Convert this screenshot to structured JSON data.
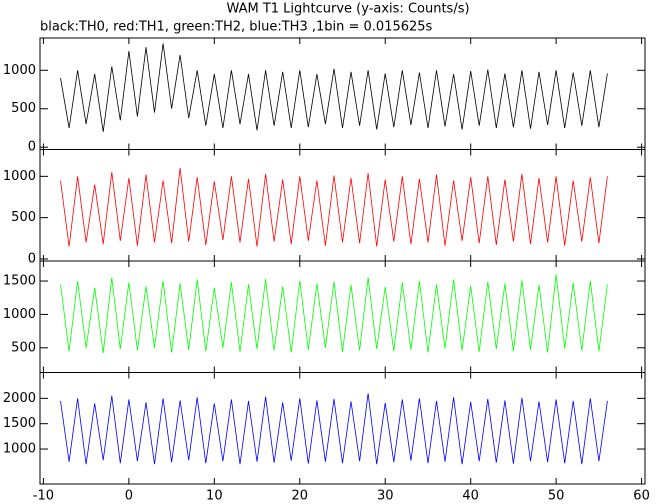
{
  "chart_data": [
    {
      "type": "line",
      "title": "WAM T1 Lightcurve (y-axis: Counts/s)",
      "subtitle": "black:TH0, red:TH1, green:TH2, blue:TH3 ,1bin = 0.015625s",
      "x": [
        -8,
        -7,
        -6,
        -5,
        -4,
        -3,
        -2,
        -1,
        0,
        1,
        2,
        3,
        4,
        5,
        6,
        7,
        8,
        9,
        10,
        11,
        12,
        13,
        14,
        15,
        16,
        17,
        18,
        19,
        20,
        21,
        22,
        23,
        24,
        25,
        26,
        27,
        28,
        29,
        30,
        31,
        32,
        33,
        34,
        35,
        36,
        37,
        38,
        39,
        40,
        41,
        42,
        43,
        44,
        45,
        46,
        47,
        48,
        49,
        50,
        51,
        52,
        53,
        54,
        55,
        56
      ],
      "series": [
        {
          "color": "#000000",
          "values": [
            900,
            250,
            1000,
            300,
            950,
            200,
            1050,
            350,
            1250,
            400,
            1300,
            450,
            1350,
            500,
            1200,
            380,
            1000,
            280,
            950,
            250,
            1000,
            300,
            950,
            220,
            1000,
            280,
            980,
            250,
            1000,
            260,
            950,
            300,
            1020,
            250,
            980,
            280,
            1000,
            230,
            960,
            260,
            1000,
            290,
            970,
            250,
            1000,
            270,
            950,
            230,
            990,
            280,
            1010,
            250,
            960,
            260,
            1000,
            240,
            980,
            290,
            1000,
            250,
            970,
            280,
            1000,
            260,
            960
          ]
        }
      ],
      "xlim": [
        -10.4,
        60.4
      ],
      "ylim": [
        -30,
        1420
      ],
      "yticks": [
        0,
        500,
        1000
      ]
    },
    {
      "type": "line",
      "x": [
        -8,
        -7,
        -6,
        -5,
        -4,
        -3,
        -2,
        -1,
        0,
        1,
        2,
        3,
        4,
        5,
        6,
        7,
        8,
        9,
        10,
        11,
        12,
        13,
        14,
        15,
        16,
        17,
        18,
        19,
        20,
        21,
        22,
        23,
        24,
        25,
        26,
        27,
        28,
        29,
        30,
        31,
        32,
        33,
        34,
        35,
        36,
        37,
        38,
        39,
        40,
        41,
        42,
        43,
        44,
        45,
        46,
        47,
        48,
        49,
        50,
        51,
        52,
        53,
        54,
        55,
        56
      ],
      "series": [
        {
          "color": "#ff0000",
          "values": [
            950,
            150,
            1000,
            200,
            900,
            180,
            1050,
            220,
            980,
            160,
            1020,
            200,
            950,
            190,
            1100,
            210,
            990,
            170,
            940,
            230,
            1000,
            200,
            970,
            150,
            1030,
            210,
            960,
            180,
            1000,
            220,
            950,
            160,
            1010,
            200,
            980,
            190,
            1040,
            150,
            960,
            210,
            1000,
            180,
            970,
            200,
            1020,
            160,
            950,
            220,
            990,
            190,
            1000,
            170,
            960,
            210,
            1030,
            180,
            980,
            200,
            1000,
            160,
            950,
            210,
            990,
            190,
            1000
          ]
        }
      ],
      "xlim": [
        -10.4,
        60.4
      ],
      "ylim": [
        -25,
        1325
      ],
      "yticks": [
        0,
        500,
        1000
      ]
    },
    {
      "type": "line",
      "x": [
        -8,
        -7,
        -6,
        -5,
        -4,
        -3,
        -2,
        -1,
        0,
        1,
        2,
        3,
        4,
        5,
        6,
        7,
        8,
        9,
        10,
        11,
        12,
        13,
        14,
        15,
        16,
        17,
        18,
        19,
        20,
        21,
        22,
        23,
        24,
        25,
        26,
        27,
        28,
        29,
        30,
        31,
        32,
        33,
        34,
        35,
        36,
        37,
        38,
        39,
        40,
        41,
        42,
        43,
        44,
        45,
        46,
        47,
        48,
        49,
        50,
        51,
        52,
        53,
        54,
        55,
        56
      ],
      "series": [
        {
          "color": "#00ff00",
          "values": [
            1450,
            450,
            1500,
            500,
            1400,
            420,
            1550,
            480,
            1480,
            460,
            1420,
            500,
            1500,
            430,
            1460,
            470,
            1520,
            450,
            1400,
            500,
            1480,
            440,
            1450,
            480,
            1530,
            460,
            1420,
            430,
            1500,
            470,
            1460,
            500,
            1490,
            440,
            1440,
            460,
            1550,
            480,
            1410,
            450,
            1480,
            470,
            1500,
            430,
            1450,
            490,
            1520,
            460,
            1430,
            440,
            1490,
            480,
            1460,
            450,
            1510,
            470,
            1440,
            430,
            1600,
            490,
            1470,
            460,
            1500,
            450,
            1450
          ]
        }
      ],
      "xlim": [
        -10.4,
        60.4
      ],
      "ylim": [
        130,
        1800
      ],
      "yticks": [
        500,
        1000,
        1500
      ]
    },
    {
      "type": "line",
      "x": [
        -8,
        -7,
        -6,
        -5,
        -4,
        -3,
        -2,
        -1,
        0,
        1,
        2,
        3,
        4,
        5,
        6,
        7,
        8,
        9,
        10,
        11,
        12,
        13,
        14,
        15,
        16,
        17,
        18,
        19,
        20,
        21,
        22,
        23,
        24,
        25,
        26,
        27,
        28,
        29,
        30,
        31,
        32,
        33,
        34,
        35,
        36,
        37,
        38,
        39,
        40,
        41,
        42,
        43,
        44,
        45,
        46,
        47,
        48,
        49,
        50,
        51,
        52,
        53,
        54,
        55,
        56
      ],
      "series": [
        {
          "color": "#0000ff",
          "values": [
            1950,
            750,
            2000,
            700,
            1900,
            780,
            2050,
            720,
            1980,
            760,
            1920,
            700,
            2000,
            740,
            1960,
            780,
            2020,
            720,
            1900,
            760,
            1980,
            700,
            1950,
            750,
            2030,
            730,
            1920,
            770,
            2000,
            710,
            1960,
            750,
            1990,
            720,
            1940,
            760,
            2100,
            700,
            1910,
            740,
            1980,
            770,
            2000,
            720,
            1950,
            750,
            2020,
            700,
            1930,
            760,
            1990,
            730,
            1960,
            710,
            2010,
            760,
            1940,
            740,
            1980,
            720,
            1950,
            700,
            2000,
            760,
            1950
          ]
        }
      ],
      "xlim": [
        -10.4,
        60.4
      ],
      "ylim": [
        310,
        2510
      ],
      "yticks": [
        1000,
        1500,
        2000
      ],
      "xticks": [
        -10,
        0,
        10,
        20,
        30,
        40,
        50,
        60
      ]
    }
  ]
}
